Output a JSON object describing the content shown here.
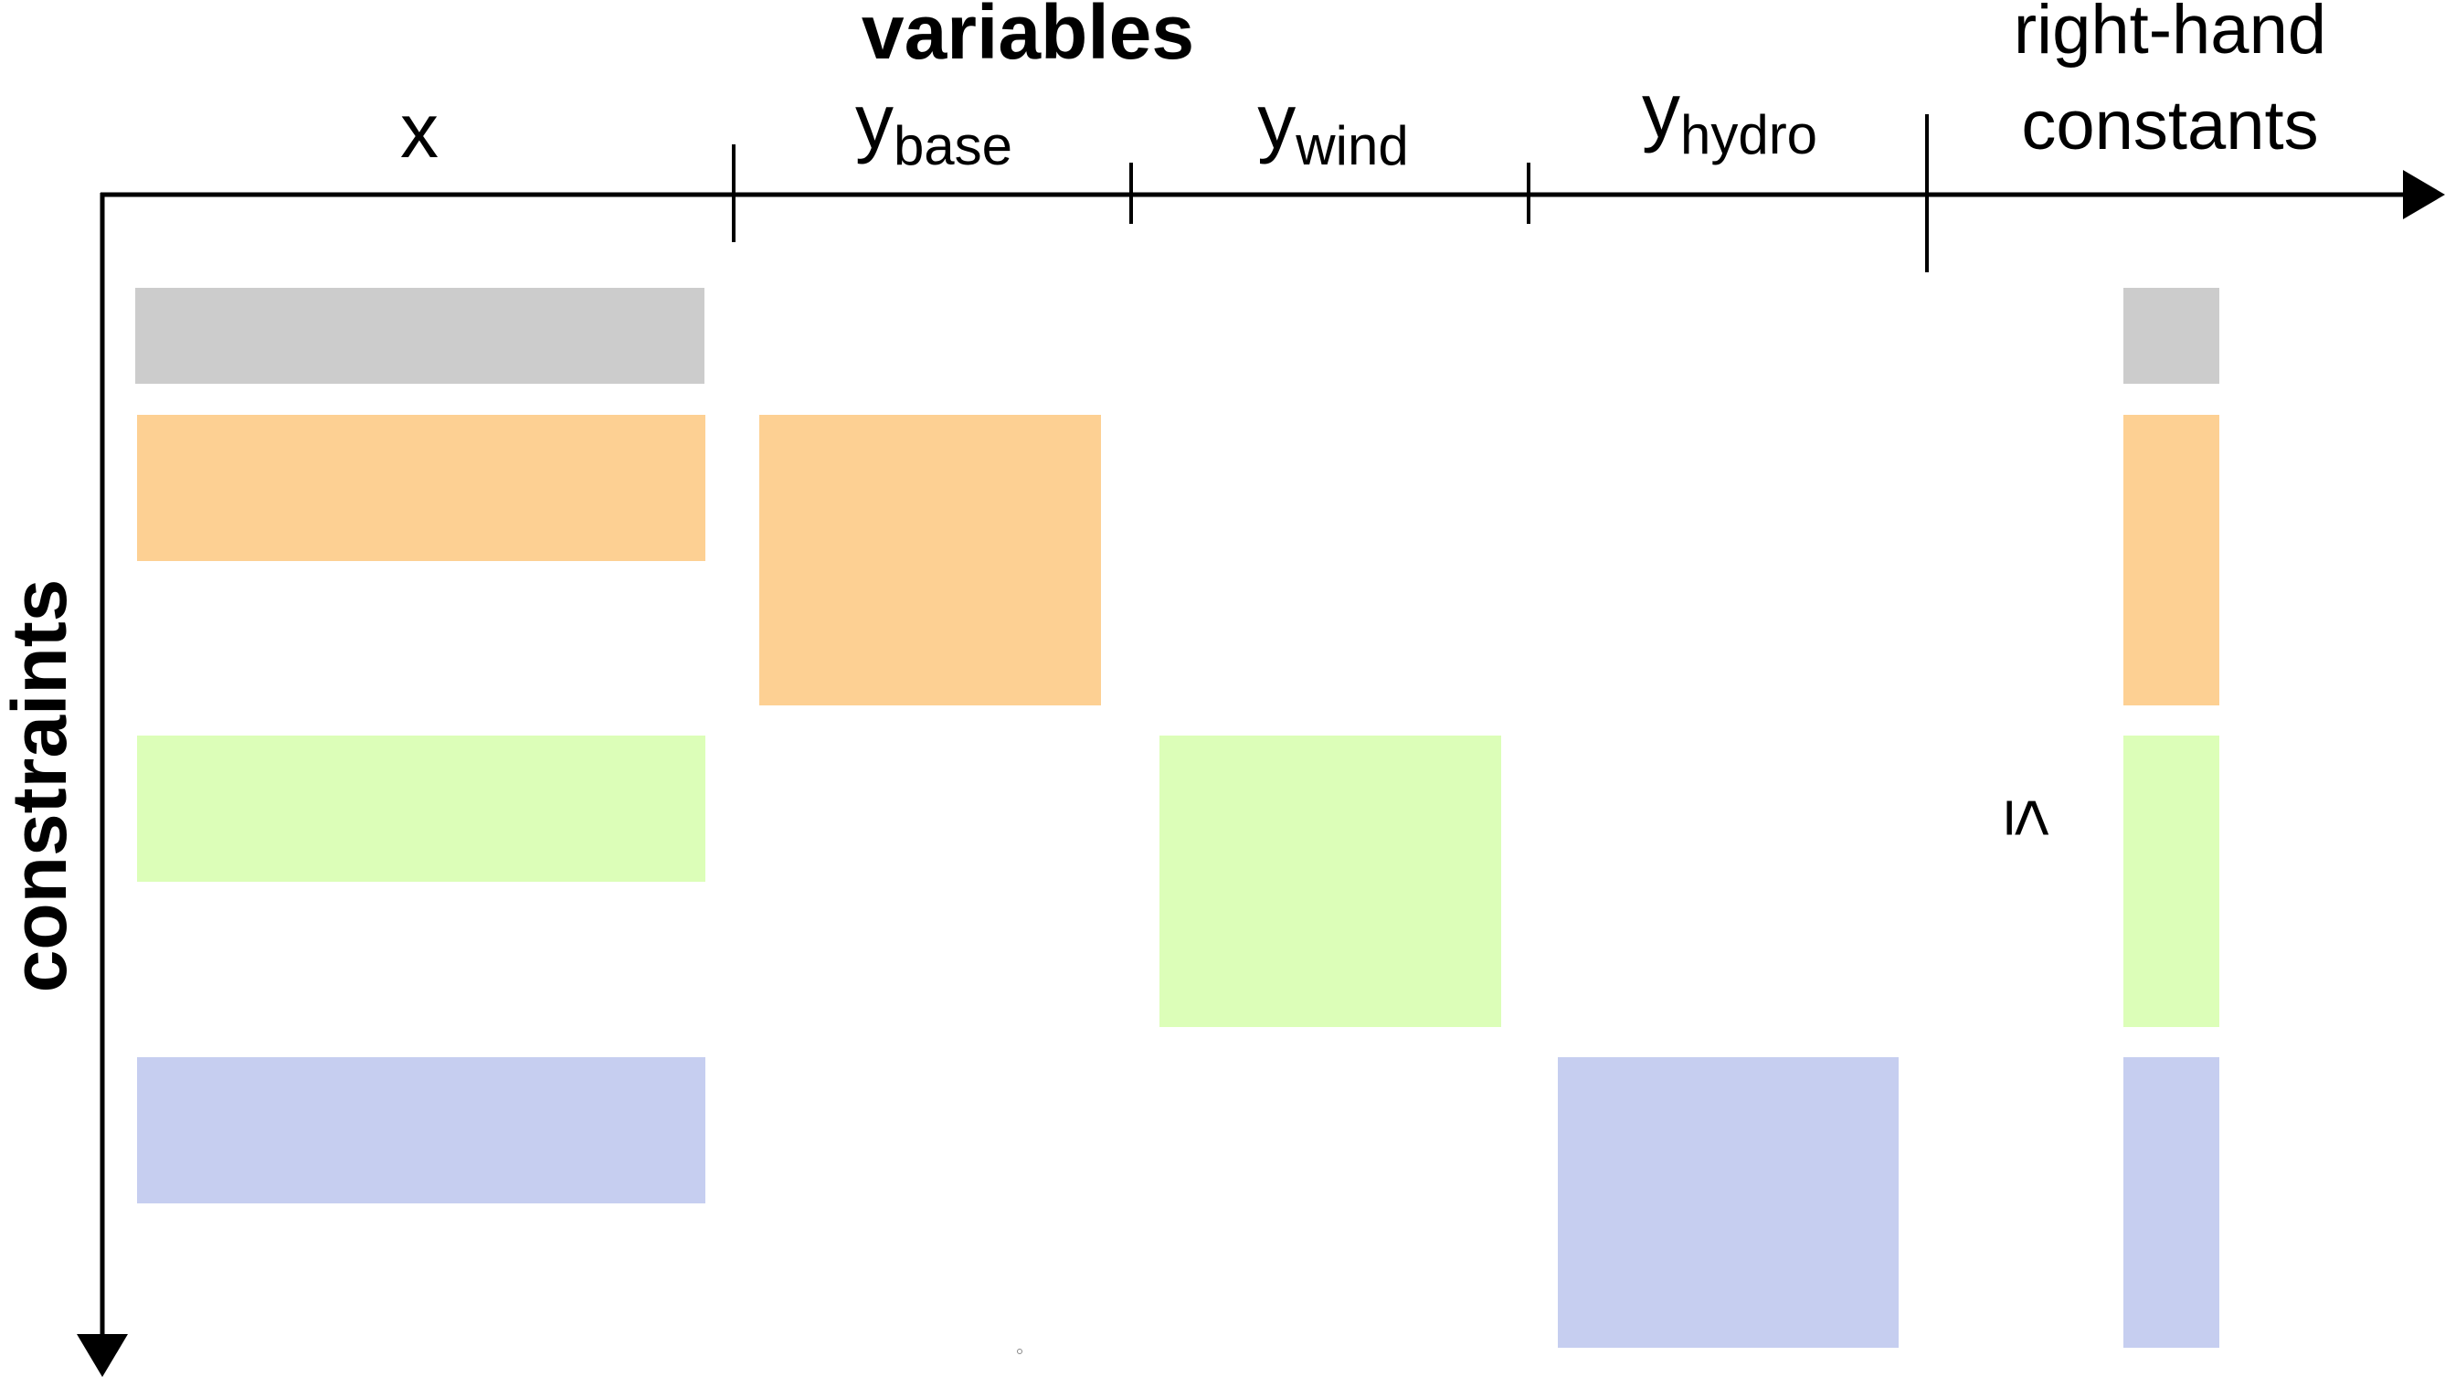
{
  "title": "variables",
  "row_axis_label": "constraints",
  "columns": [
    {
      "main": "x",
      "sub": ""
    },
    {
      "main": "y",
      "sub": "base"
    },
    {
      "main": "y",
      "sub": "wind"
    },
    {
      "main": "y",
      "sub": "hydro"
    }
  ],
  "rhs_label": {
    "line1": "right-hand",
    "line2": "constants"
  },
  "inequality_symbol": "≤",
  "colors": {
    "gray": "#cccccc",
    "orange": "#fdd093",
    "green": "#dcfeb8",
    "blue": "#c6cef0",
    "axis": "#000000"
  },
  "blocks": [
    {
      "name": "block-gray-x",
      "color": "gray"
    },
    {
      "name": "block-gray-rhs",
      "color": "gray"
    },
    {
      "name": "block-orange-x",
      "color": "orange"
    },
    {
      "name": "block-orange-ybase",
      "color": "orange"
    },
    {
      "name": "block-orange-rhs",
      "color": "orange"
    },
    {
      "name": "block-green-x",
      "color": "green"
    },
    {
      "name": "block-green-ywind",
      "color": "green"
    },
    {
      "name": "block-green-rhs",
      "color": "green"
    },
    {
      "name": "block-blue-x",
      "color": "blue"
    },
    {
      "name": "block-blue-yhydro",
      "color": "blue"
    },
    {
      "name": "block-blue-rhs",
      "color": "blue"
    }
  ]
}
